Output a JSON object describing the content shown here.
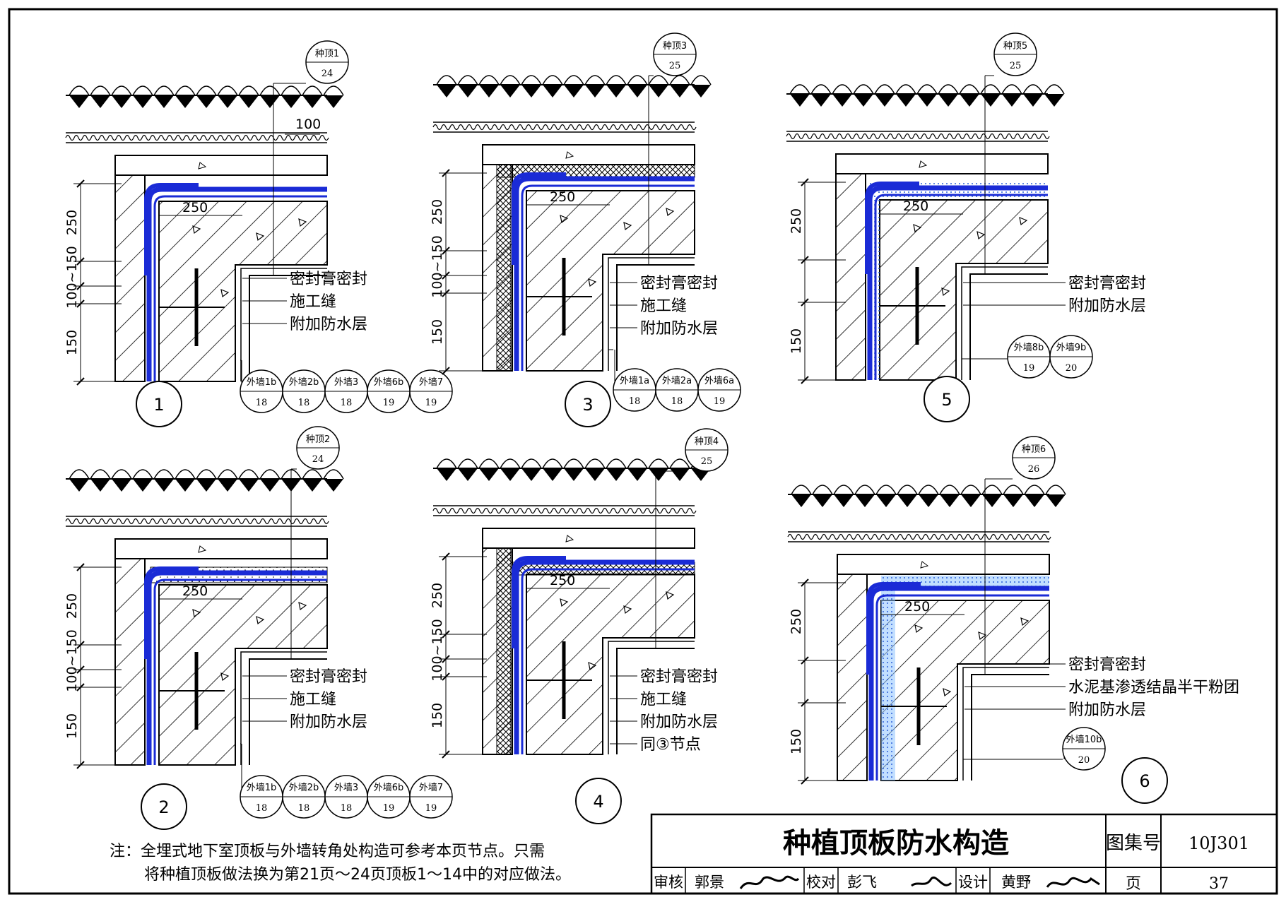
{
  "details": [
    {
      "number": "1",
      "roof_ref": {
        "top": "种顶1",
        "bottom": "24"
      },
      "dim_offset": "100",
      "corner_dim": "250",
      "dims": [
        "250",
        "100~150",
        "150"
      ],
      "labels": [
        "密封膏密封",
        "施工缝",
        "附加防水层"
      ],
      "wall_refs": [
        {
          "top": "外墙1b",
          "bottom": "18"
        },
        {
          "top": "外墙2b",
          "bottom": "18"
        },
        {
          "top": "外墙3",
          "bottom": "18"
        },
        {
          "top": "外墙6b",
          "bottom": "19"
        },
        {
          "top": "外墙7",
          "bottom": "19"
        }
      ]
    },
    {
      "number": "3",
      "roof_ref": {
        "top": "种顶3",
        "bottom": "25"
      },
      "corner_dim": "250",
      "dims": [
        "250",
        "100~150",
        "150"
      ],
      "labels": [
        "密封膏密封",
        "施工缝",
        "附加防水层"
      ],
      "wall_refs": [
        {
          "top": "外墙1a",
          "bottom": "18"
        },
        {
          "top": "外墙2a",
          "bottom": "18"
        },
        {
          "top": "外墙6a",
          "bottom": "19"
        }
      ]
    },
    {
      "number": "5",
      "roof_ref": {
        "top": "种顶5",
        "bottom": "25"
      },
      "corner_dim": "250",
      "dims": [
        "250",
        "150"
      ],
      "labels": [
        "密封膏密封",
        "附加防水层"
      ],
      "wall_refs": [
        {
          "top": "外墙8b",
          "bottom": "19"
        },
        {
          "top": "外墙9b",
          "bottom": "20"
        }
      ]
    },
    {
      "number": "2",
      "roof_ref": {
        "top": "种顶2",
        "bottom": "24"
      },
      "corner_dim": "250",
      "dims": [
        "250",
        "100~150",
        "150"
      ],
      "labels": [
        "密封膏密封",
        "施工缝",
        "附加防水层"
      ],
      "wall_refs": [
        {
          "top": "外墙1b",
          "bottom": "18"
        },
        {
          "top": "外墙2b",
          "bottom": "18"
        },
        {
          "top": "外墙3",
          "bottom": "18"
        },
        {
          "top": "外墙6b",
          "bottom": "19"
        },
        {
          "top": "外墙7",
          "bottom": "19"
        }
      ]
    },
    {
      "number": "4",
      "roof_ref": {
        "top": "种顶4",
        "bottom": "25"
      },
      "corner_dim": "250",
      "dims": [
        "250",
        "100~150",
        "150"
      ],
      "labels": [
        "密封膏密封",
        "施工缝",
        "附加防水层",
        "同③节点"
      ],
      "wall_refs": []
    },
    {
      "number": "6",
      "roof_ref": {
        "top": "种顶6",
        "bottom": "26"
      },
      "corner_dim": "250",
      "dims": [
        "250",
        "150"
      ],
      "labels": [
        "密封膏密封",
        "水泥基渗透结晶半干粉团",
        "附加防水层"
      ],
      "wall_refs": [
        {
          "top": "外墙10b",
          "bottom": "20"
        }
      ]
    }
  ],
  "note": {
    "line1": "注：全埋式地下室顶板与外墙转角处构造可参考本页节点。只需",
    "line2": "将种植顶板做法换为第21页～24页顶板1～14中的对应做法。"
  },
  "title_block": {
    "title": "种植顶板防水构造",
    "atlas_label": "图集号",
    "atlas_no": "10J301",
    "review_label": "审核",
    "reviewer": "郭景",
    "check_label": "校对",
    "checker": "彭飞",
    "design_label": "设计",
    "designer": "黄野",
    "page_label": "页",
    "page_no": "37"
  },
  "colors": {
    "membrane": "#1a2bd6",
    "sealant_fill": "#8fc4ff",
    "line": "#000000"
  }
}
